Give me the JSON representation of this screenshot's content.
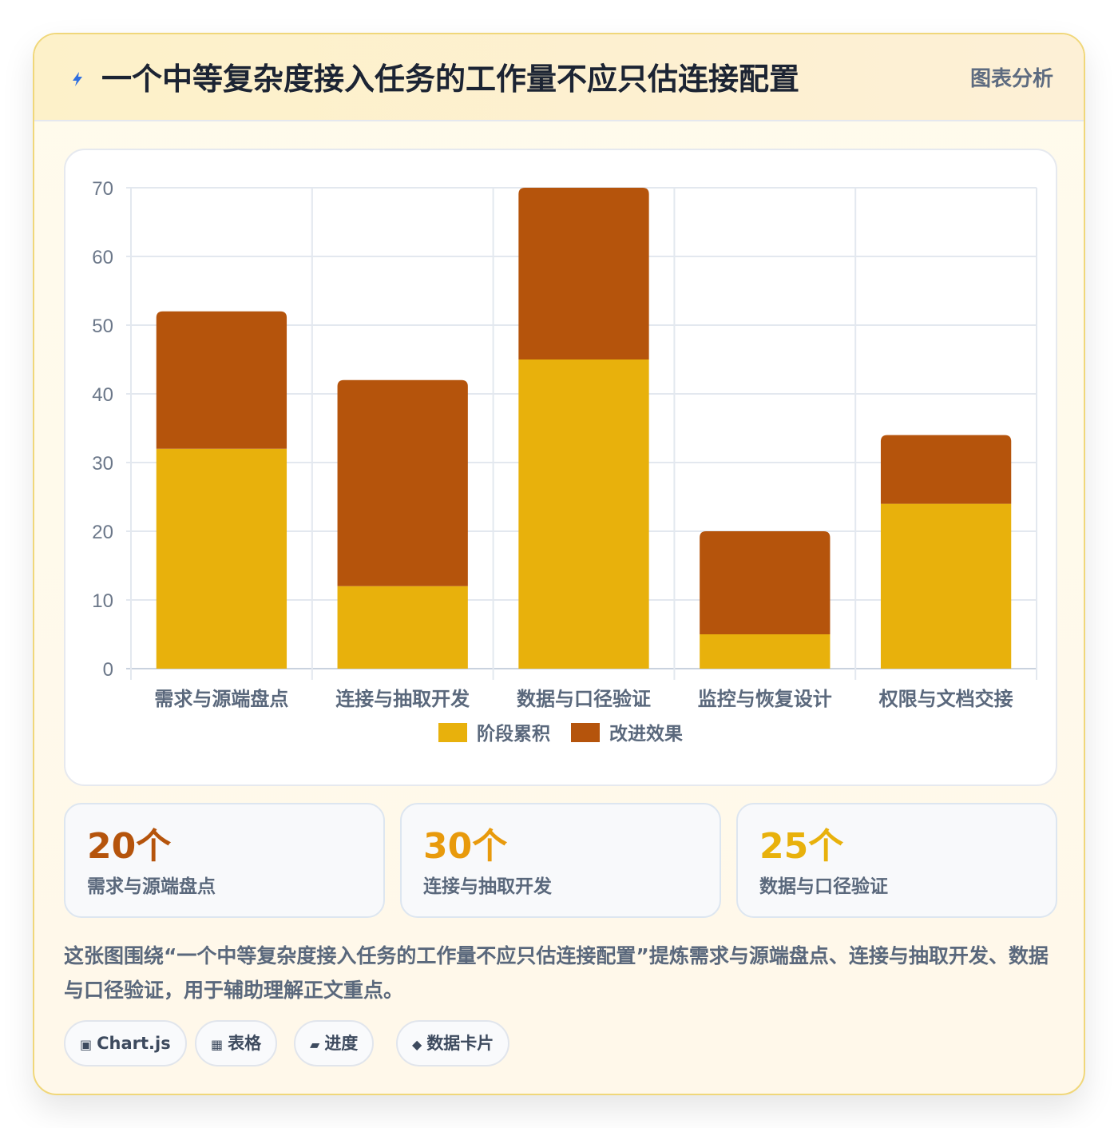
{
  "header": {
    "icon": "lightning-icon",
    "title": "一个中等复杂度接入任务的工作量不应只估连接配置",
    "badge": "图表分析"
  },
  "chart_data": {
    "type": "bar",
    "stacked": true,
    "categories": [
      "需求与源端盘点",
      "连接与抽取开发",
      "数据与口径验证",
      "监控与恢复设计",
      "权限与文档交接"
    ],
    "series": [
      {
        "name": "阶段累积",
        "color": "#e8b10c",
        "values": [
          32,
          12,
          45,
          5,
          24
        ]
      },
      {
        "name": "改进效果",
        "color": "#b5540c",
        "values": [
          20,
          30,
          25,
          15,
          10
        ]
      }
    ],
    "ylim": [
      0,
      70
    ],
    "yticks": [
      0,
      10,
      20,
      30,
      40,
      50,
      60,
      70
    ],
    "grid": true,
    "legend": "bottom"
  },
  "stats": [
    {
      "value": "20个",
      "label": "需求与源端盘点",
      "color": "#b5540c"
    },
    {
      "value": "30个",
      "label": "连接与抽取开发",
      "color": "#e89a0c"
    },
    {
      "value": "25个",
      "label": "数据与口径验证",
      "color": "#e8b10c"
    }
  ],
  "summary": "这张图围绕“一个中等复杂度接入任务的工作量不应只估连接配置”提炼需求与源端盘点、连接与抽取开发、数据与口径验证，用于辅助理解正文重点。",
  "tags": [
    {
      "icon": "▣",
      "label": "Chart.js"
    },
    {
      "icon": "▦",
      "label": "表格"
    },
    {
      "icon": "▰",
      "label": "进度"
    },
    {
      "icon": "◆",
      "label": "数据卡片"
    }
  ]
}
